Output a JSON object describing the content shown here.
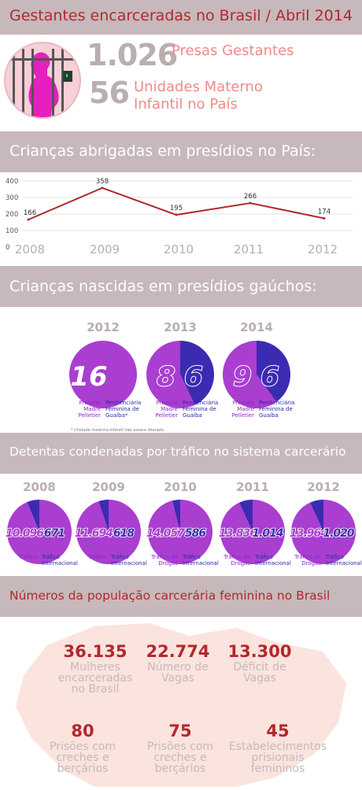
{
  "header": {
    "title": "Gestantes encarceradas no Brasil / Abril 2014",
    "stat1_value": "1.026",
    "stat1_label": "Presas Gestantes",
    "stat2_value": "56",
    "stat2_label_line1": "Unidades Materno",
    "stat2_label_line2": "Infantil no País"
  },
  "section1": {
    "title": "Crianças abrigadas em presídios no País:"
  },
  "section2": {
    "title": "Crianças nascidas em presídios gaúchos:"
  },
  "section3": {
    "title": "Detentas condenadas por tráfico no sistema carcerário"
  },
  "section4": {
    "title": "Números da população carcerária feminina no Brasil"
  },
  "chart_data": [
    {
      "type": "line",
      "x": [
        "2008",
        "2009",
        "2010",
        "2011",
        "2012"
      ],
      "y": [
        166,
        358,
        195,
        266,
        174
      ],
      "yticks": [
        "0",
        "100",
        "200",
        "300",
        "400"
      ],
      "ylim": [
        0,
        400
      ],
      "grid": true,
      "color": "#b2282c"
    },
    {
      "type": "pie",
      "years": [
        "2012",
        "2013",
        "2014"
      ],
      "pies": [
        {
          "year": "2012",
          "slices": [
            {
              "label": "Presídio Madre Pelletier",
              "value": 16,
              "text": "16"
            }
          ]
        },
        {
          "year": "2013",
          "slices": [
            {
              "label": "Presídio Madre Pelletier",
              "value": 8,
              "text": "8"
            },
            {
              "label": "Penitenciária Feminina de Guaíba",
              "value": 6,
              "text": "6"
            }
          ]
        },
        {
          "year": "2014",
          "slices": [
            {
              "label": "Presídio Madre Pelletier",
              "value": 9,
              "text": "9"
            },
            {
              "label": "Penitenciária Feminina de Guaíba",
              "value": 6,
              "text": "6"
            }
          ]
        }
      ],
      "labels": {
        "p2012_a": "Presídio Madre Pelletier",
        "p2012_b": "Penitenciária Feminina de Guaíba*",
        "p2013_a": "Presídio Madre Pelletier",
        "p2013_b": "Penitenciária Feminina de Guaíba",
        "p2014_a": "Presídio Madre Pelletier",
        "p2014_b": "Penitenciária Feminina de Guaíba"
      },
      "footnote": "* Unidade materno-infantil não estava liberada",
      "colors": {
        "madre": "#a93ed0",
        "guaiba": "#3b2bb0"
      }
    },
    {
      "type": "pie",
      "years": [
        "2008",
        "2009",
        "2010",
        "2011",
        "2012"
      ],
      "pies": [
        {
          "year": "2008",
          "trafico": 10096,
          "trafico_text": "10.096",
          "internacional": 671,
          "internacional_text": "671",
          "label_a": "Tráfico",
          "label_b": "Tráfico Internacional"
        },
        {
          "year": "2009",
          "trafico": 11694,
          "trafico_text": "11.694",
          "internacional": 618,
          "internacional_text": "618",
          "label_a": "Tráfico",
          "label_b": "Tráfico Internacional"
        },
        {
          "year": "2010",
          "trafico": 14057,
          "trafico_text": "14.057",
          "internacional": 586,
          "internacional_text": "586",
          "label_a": "Tráfico de Drogas",
          "label_b": "Tráfico Internacional"
        },
        {
          "year": "2011",
          "trafico": 13836,
          "trafico_text": "13.836",
          "internacional": 1014,
          "internacional_text": "1.014",
          "label_a": "Tráfico de Drogas",
          "label_b": "Tráfico Internacional"
        },
        {
          "year": "2012",
          "trafico": 13964,
          "trafico_text": "13.964",
          "internacional": 1020,
          "internacional_text": "1.020",
          "label_a": "Tráfico de Drogas",
          "label_b": "Tráfico Internacional"
        }
      ],
      "colors": {
        "trafico": "#a93ed0",
        "internacional": "#3b2bb0"
      }
    }
  ],
  "stats": [
    {
      "value": "36.135",
      "label": "Mulheres encarceradas no Brasil"
    },
    {
      "value": "22.774",
      "label": "Número de Vagas"
    },
    {
      "value": "13.300",
      "label": "Déficit de Vagas"
    },
    {
      "value": "80",
      "label": "Prisões com creches e berçários"
    },
    {
      "value": "75",
      "label": "Prisões com creches e berçários"
    },
    {
      "value": "45",
      "label": "Estabelecimentos prisionais femininos"
    }
  ],
  "icons": {
    "prison": "pregnant-prisoner-icon",
    "map": "brazil-map-icon"
  }
}
